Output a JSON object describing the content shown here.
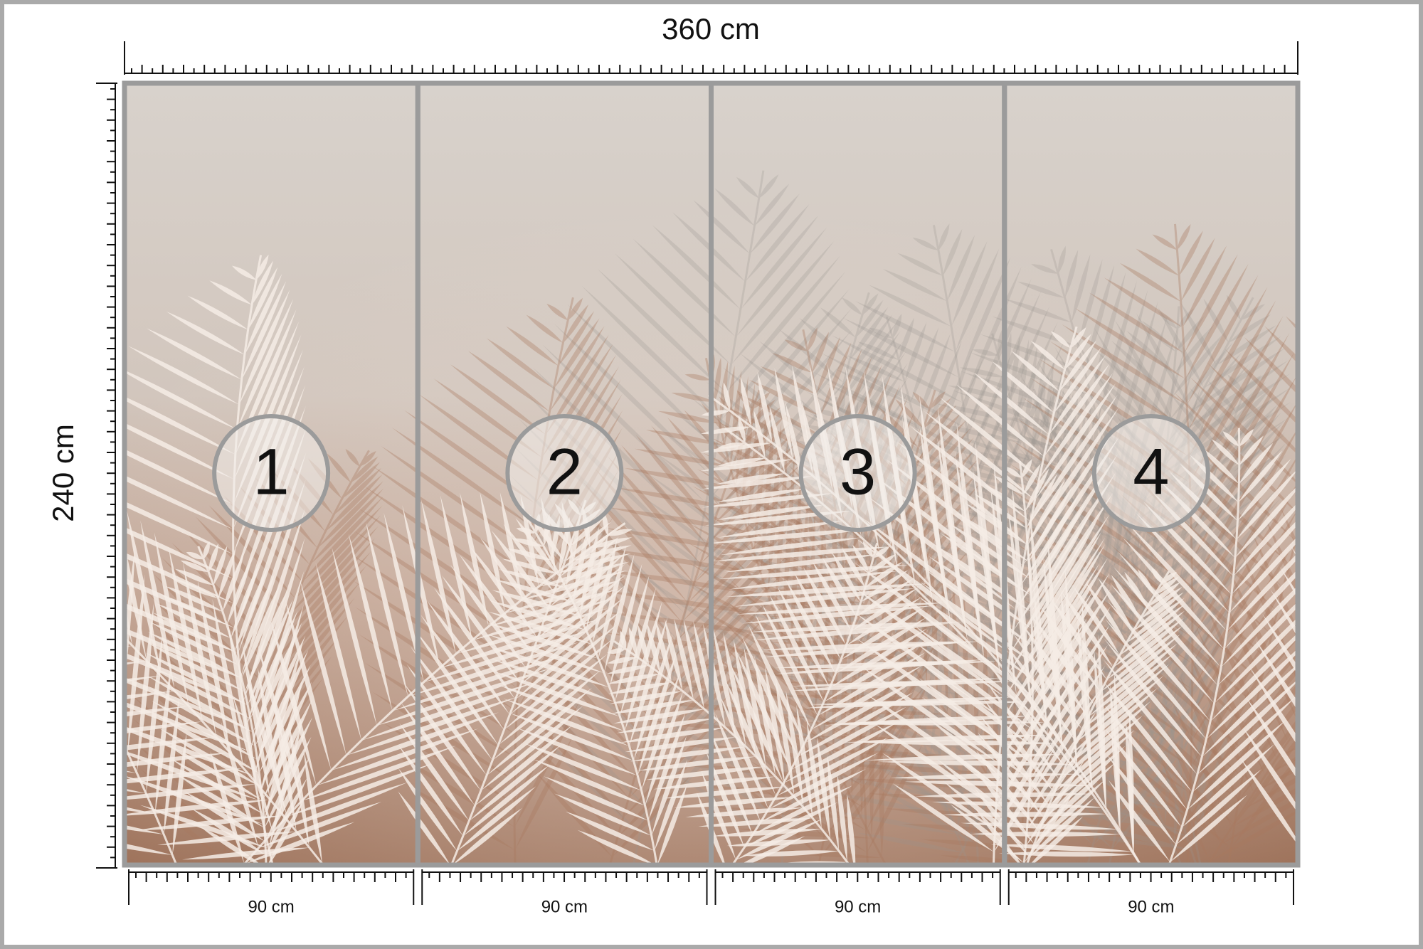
{
  "dimensions": {
    "width": "360 cm",
    "height": "240 cm"
  },
  "panels": [
    {
      "number": "1",
      "width": "90 cm"
    },
    {
      "number": "2",
      "width": "90 cm"
    },
    {
      "number": "3",
      "width": "90 cm"
    },
    {
      "number": "4",
      "width": "90 cm"
    }
  ]
}
